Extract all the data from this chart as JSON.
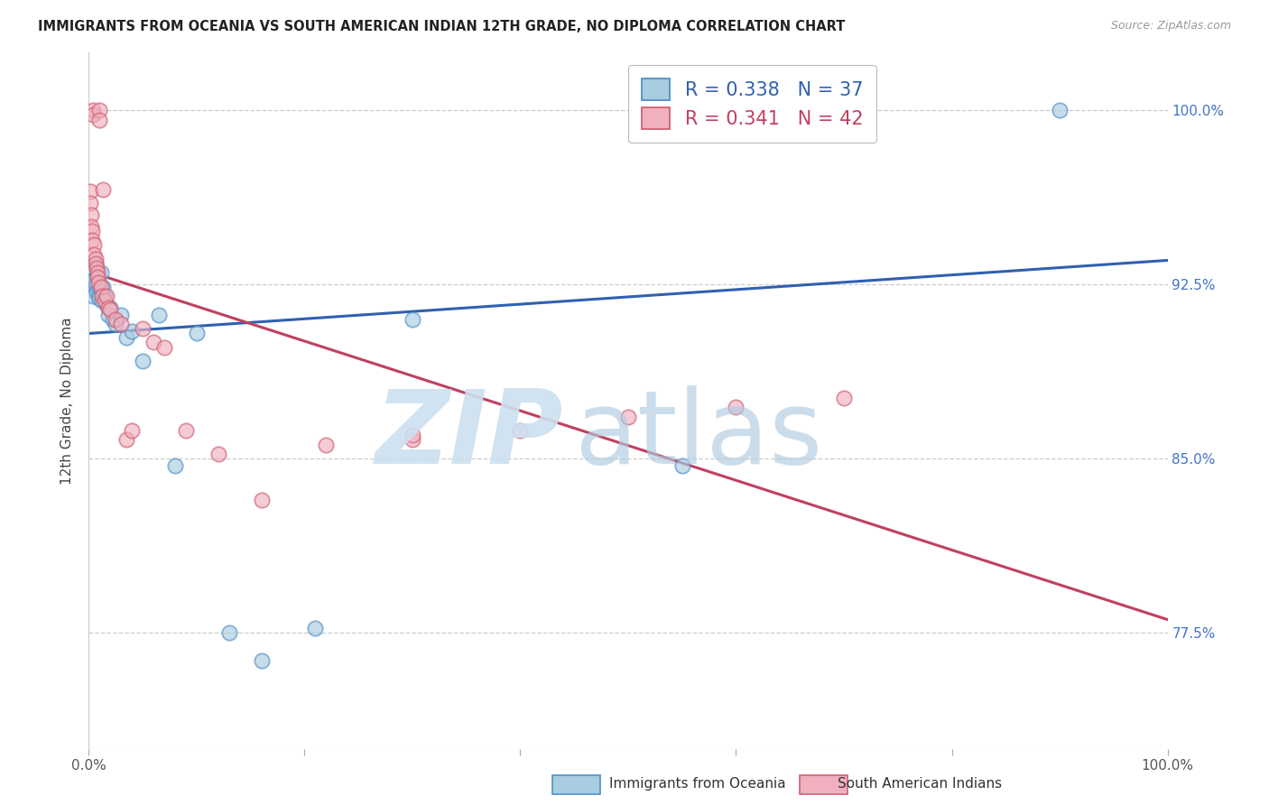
{
  "title": "IMMIGRANTS FROM OCEANIA VS SOUTH AMERICAN INDIAN 12TH GRADE, NO DIPLOMA CORRELATION CHART",
  "source": "Source: ZipAtlas.com",
  "ylabel": "12th Grade, No Diploma",
  "xlim": [
    0.0,
    1.0
  ],
  "ylim": [
    0.725,
    1.025
  ],
  "yticks": [
    0.775,
    0.85,
    0.925,
    1.0
  ],
  "legend_blue_r": "0.338",
  "legend_blue_n": "37",
  "legend_pink_r": "0.341",
  "legend_pink_n": "42",
  "legend_label_blue": "Immigrants from Oceania",
  "legend_label_pink": "South American Indians",
  "blue_scatter_color": "#a8cce0",
  "blue_edge_color": "#5090c8",
  "pink_scatter_color": "#f0b0c0",
  "pink_edge_color": "#d06070",
  "trendline_blue": "#3060b0",
  "trendline_pink": "#c04060",
  "background_color": "#ffffff",
  "grid_color": "#cccccc",
  "title_color": "#222222",
  "ylabel_color": "#444444",
  "ytick_color": "#4472C4",
  "blue_x": [
    0.001,
    0.002,
    0.003,
    0.003,
    0.004,
    0.004,
    0.005,
    0.006,
    0.006,
    0.007,
    0.008,
    0.009,
    0.01,
    0.01,
    0.011,
    0.012,
    0.013,
    0.015,
    0.016,
    0.018,
    0.02,
    0.022,
    0.025,
    0.03,
    0.035,
    0.04,
    0.05,
    0.065,
    0.08,
    0.1,
    0.13,
    0.16,
    0.21,
    0.3,
    0.55,
    0.72,
    0.9
  ],
  "blue_y": [
    0.926,
    0.928,
    0.93,
    0.925,
    0.932,
    0.92,
    0.927,
    0.925,
    0.934,
    0.922,
    0.928,
    0.92,
    0.924,
    0.919,
    0.93,
    0.918,
    0.924,
    0.92,
    0.916,
    0.912,
    0.915,
    0.91,
    0.908,
    0.912,
    0.902,
    0.905,
    0.892,
    0.912,
    0.847,
    0.904,
    0.775,
    0.763,
    0.777,
    0.91,
    0.847,
    0.998,
    1.0
  ],
  "pink_x": [
    0.001,
    0.001,
    0.002,
    0.002,
    0.003,
    0.003,
    0.004,
    0.004,
    0.005,
    0.005,
    0.006,
    0.006,
    0.007,
    0.008,
    0.008,
    0.009,
    0.01,
    0.01,
    0.011,
    0.012,
    0.013,
    0.015,
    0.016,
    0.018,
    0.02,
    0.025,
    0.03,
    0.035,
    0.04,
    0.05,
    0.06,
    0.07,
    0.09,
    0.12,
    0.16,
    0.22,
    0.3,
    0.4,
    0.5,
    0.6,
    0.7,
    0.3
  ],
  "pink_y": [
    0.965,
    0.96,
    0.955,
    0.95,
    0.948,
    0.944,
    1.0,
    0.998,
    0.942,
    0.938,
    0.936,
    0.934,
    0.932,
    0.93,
    0.928,
    0.926,
    1.0,
    0.996,
    0.924,
    0.92,
    0.966,
    0.918,
    0.92,
    0.915,
    0.914,
    0.91,
    0.908,
    0.858,
    0.862,
    0.906,
    0.9,
    0.898,
    0.862,
    0.852,
    0.832,
    0.856,
    0.858,
    0.862,
    0.868,
    0.872,
    0.876,
    0.86
  ]
}
